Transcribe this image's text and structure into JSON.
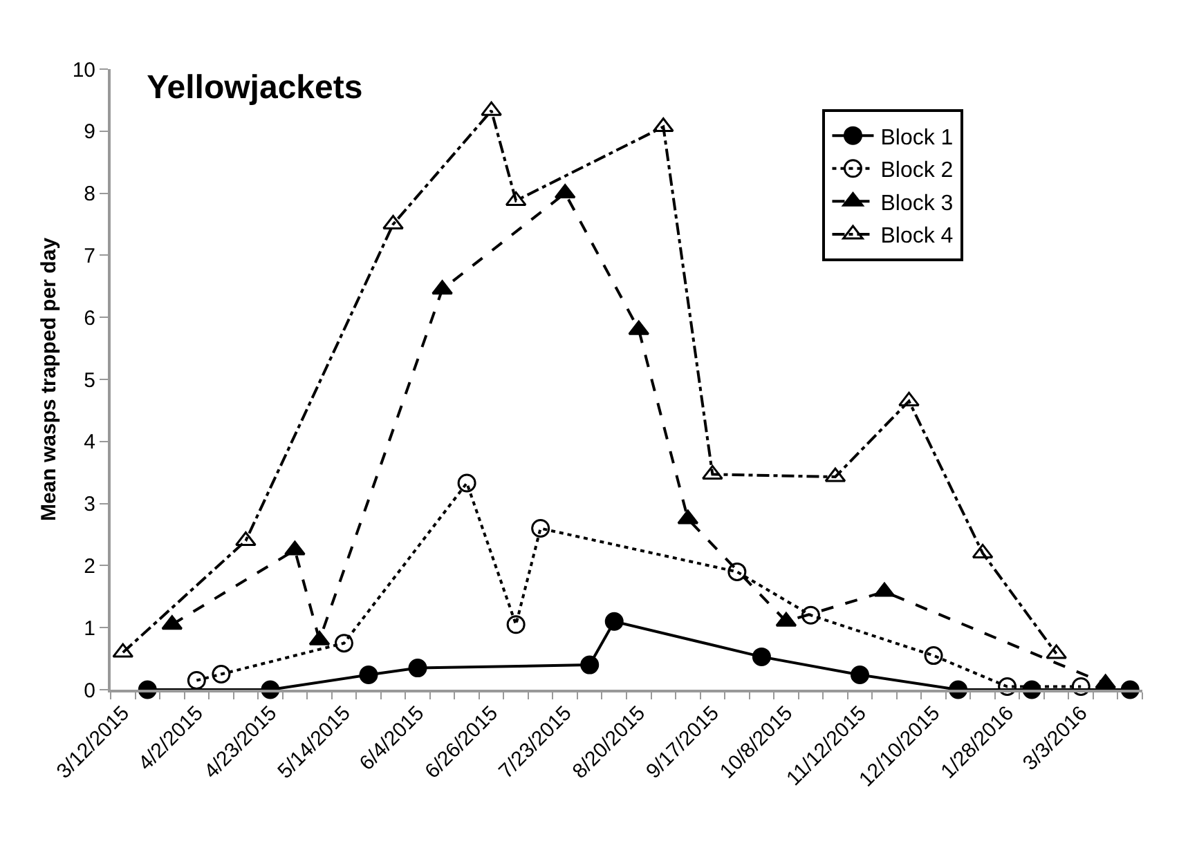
{
  "chart_data": {
    "type": "line",
    "title": "Yellowjackets",
    "ylabel": "Mean wasps trapped per day",
    "categories": [
      "3/12/2015",
      null,
      null,
      "4/2/2015",
      null,
      null,
      "4/23/2015",
      null,
      null,
      "5/14/2015",
      null,
      null,
      "6/4/2015",
      null,
      null,
      "6/26/2015",
      null,
      null,
      "7/23/2015",
      null,
      null,
      "8/20/2015",
      null,
      null,
      "9/17/2015",
      null,
      null,
      "10/8/2015",
      null,
      null,
      "11/12/2015",
      null,
      null,
      "12/10/2015",
      null,
      null,
      "1/28/2016",
      null,
      null,
      "3/3/2016",
      null,
      null
    ],
    "series": [
      {
        "name": "Block 1",
        "color": "#000000",
        "marker": "circle",
        "line_style": "solid",
        "values": [
          null,
          0,
          null,
          null,
          null,
          null,
          0,
          null,
          null,
          null,
          0.24,
          null,
          0.35,
          null,
          null,
          null,
          null,
          null,
          null,
          0.4,
          1.1,
          null,
          null,
          null,
          null,
          null,
          0.53,
          null,
          null,
          null,
          0.24,
          null,
          null,
          null,
          0,
          null,
          null,
          0,
          null,
          null,
          null,
          0
        ]
      },
      {
        "name": "Block 2",
        "color": "#000000",
        "marker": "circle-open",
        "line_style": "dotted",
        "values": [
          null,
          null,
          null,
          0.15,
          0.25,
          null,
          null,
          null,
          null,
          0.75,
          null,
          null,
          null,
          null,
          3.33,
          null,
          1.05,
          2.6,
          null,
          null,
          null,
          null,
          null,
          null,
          null,
          1.9,
          null,
          null,
          1.2,
          null,
          null,
          null,
          null,
          0.55,
          null,
          null,
          0.05,
          null,
          null,
          0.05,
          null,
          null
        ]
      },
      {
        "name": "Block 3",
        "color": "#000000",
        "marker": "triangle",
        "line_style": "dashed",
        "values": [
          null,
          null,
          1.05,
          null,
          null,
          null,
          null,
          2.25,
          0.8,
          null,
          null,
          null,
          null,
          6.45,
          null,
          null,
          null,
          null,
          8.0,
          null,
          null,
          5.8,
          null,
          2.75,
          null,
          null,
          null,
          1.1,
          null,
          null,
          null,
          1.58,
          null,
          null,
          null,
          null,
          null,
          null,
          null,
          null,
          0.1,
          null
        ]
      },
      {
        "name": "Block 4",
        "color": "#000000",
        "marker": "triangle-open",
        "line_style": "dashdot",
        "values": [
          0.6,
          null,
          null,
          null,
          null,
          2.4,
          null,
          null,
          null,
          null,
          null,
          7.5,
          null,
          null,
          null,
          9.33,
          7.88,
          null,
          null,
          null,
          null,
          null,
          9.07,
          null,
          3.47,
          null,
          null,
          null,
          null,
          3.43,
          null,
          null,
          4.65,
          null,
          null,
          2.2,
          null,
          null,
          0.58,
          null,
          null,
          null
        ]
      }
    ],
    "ylim": [
      0,
      10
    ],
    "yticks": [
      0,
      1,
      2,
      3,
      4,
      5,
      6,
      7,
      8,
      9,
      10
    ],
    "grid": false,
    "legend": "top right"
  }
}
